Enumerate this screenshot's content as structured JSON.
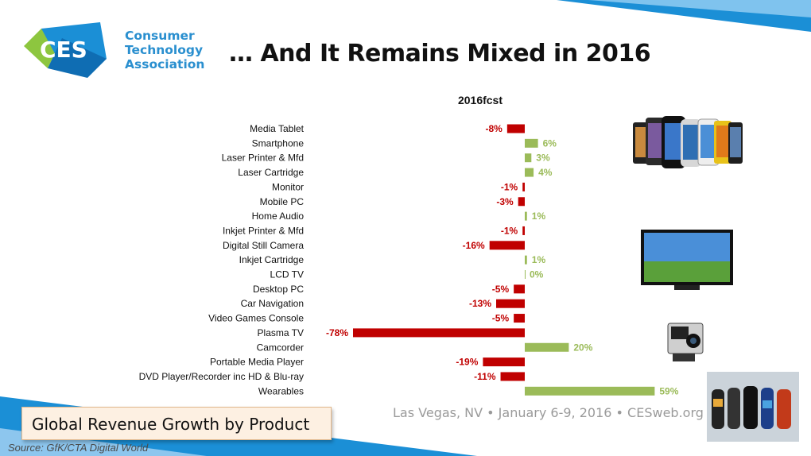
{
  "header": {
    "logo_mark": "CES",
    "logo_lines": [
      "Consumer",
      "Technology",
      "Association"
    ],
    "title": "… And It Remains Mixed in 2016"
  },
  "footer": {
    "event": "Las Vegas, NV  •  January 6-9, 2016  •  CESweb.org",
    "subtitle": "Global Revenue Growth by Product",
    "source": "Source: GfK/CTA Digital World"
  },
  "colors": {
    "negative": "#c00000",
    "positive": "#9bbb59",
    "brand_blue": "#1b8fd6",
    "brand_green": "#8dc63f"
  },
  "chart_data": {
    "type": "bar",
    "orientation": "horizontal",
    "title": "2016fcst",
    "categories": [
      "Media Tablet",
      "Smartphone",
      "Laser Printer & Mfd",
      "Laser Cartridge",
      "Monitor",
      "Mobile PC",
      "Home Audio",
      "Inkjet Printer & Mfd",
      "Digital Still Camera",
      "Inkjet Cartridge",
      "LCD TV",
      "Desktop PC",
      "Car Navigation",
      "Video Games Console",
      "Plasma TV",
      "Camcorder",
      "Portable Media Player",
      "DVD Player/Recorder inc HD & Blu-ray",
      "Wearables"
    ],
    "values": [
      -8,
      6,
      3,
      4,
      -1,
      -3,
      1,
      -1,
      -16,
      1,
      0,
      -5,
      -13,
      -5,
      -78,
      20,
      -19,
      -11,
      59
    ],
    "labels": [
      "-8%",
      "6%",
      "3%",
      "4%",
      "-1%",
      "-3%",
      "1%",
      "-1%",
      "-16%",
      "1%",
      "0%",
      "-5%",
      "-13%",
      "-5%",
      "-78%",
      "20%",
      "-19%",
      "-11%",
      "59%"
    ],
    "unit": "%",
    "xlim": [
      -78,
      59
    ],
    "grid": false,
    "legend": "none"
  },
  "images": [
    "smartphones",
    "lcd-tv",
    "action-camera",
    "wearable-bands"
  ]
}
